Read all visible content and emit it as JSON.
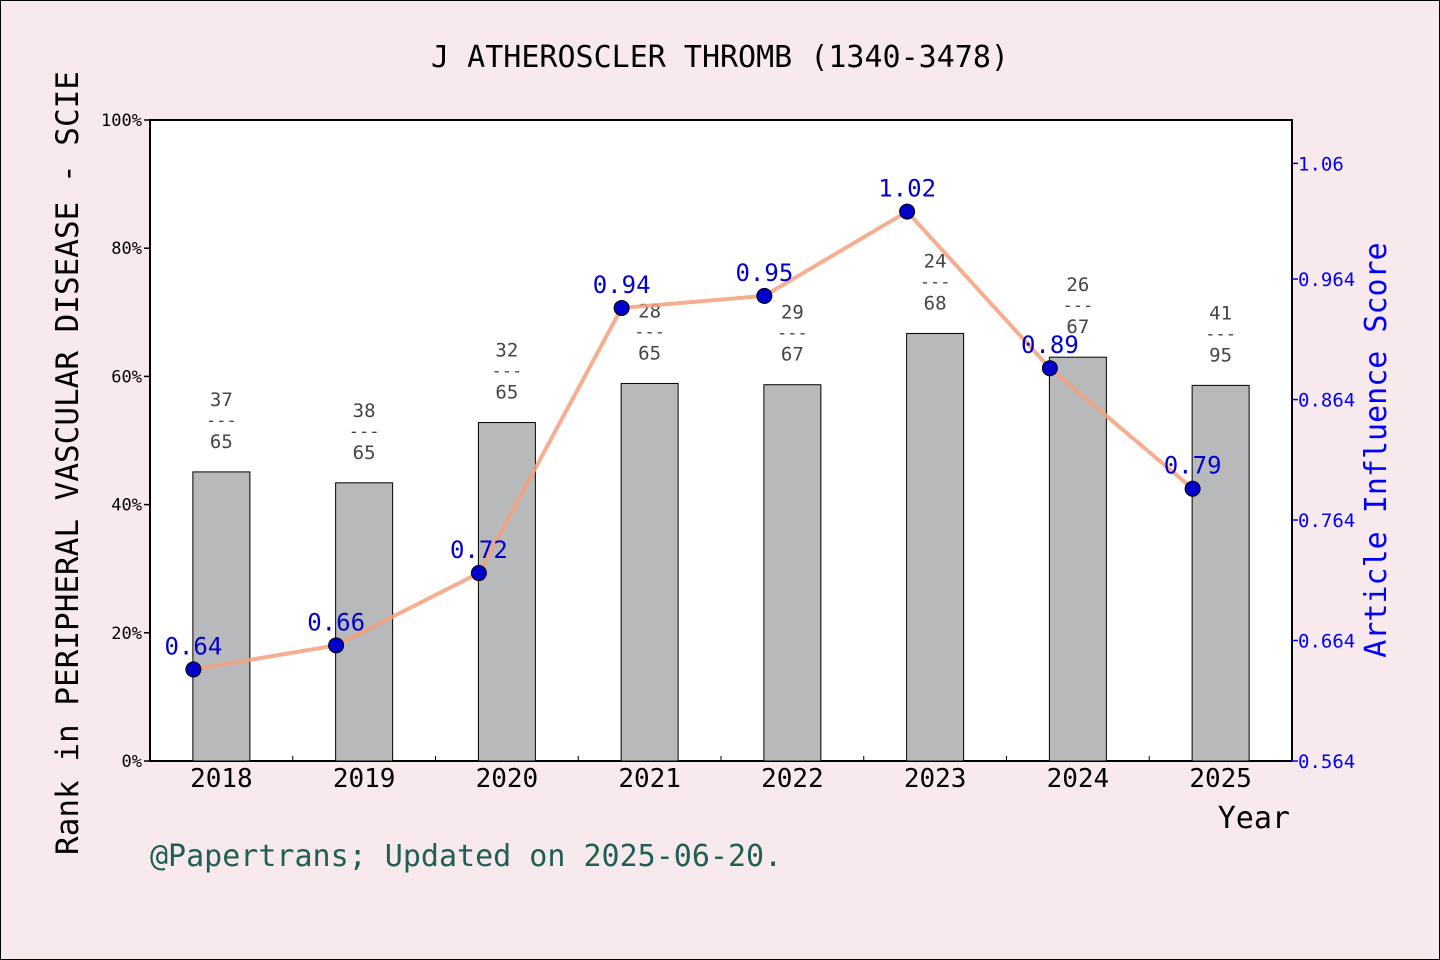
{
  "chart_data": {
    "type": "bar+line",
    "title": "J ATHEROSCLER THROMB (1340-3478)",
    "xlabel": "Year",
    "ylabel_left": "Rank in PERIPHERAL VASCULAR DISEASE - SCIE",
    "ylabel_right": "Article Influence Score",
    "categories": [
      "2018",
      "2019",
      "2020",
      "2021",
      "2022",
      "2023",
      "2024",
      "2025"
    ],
    "left_axis": {
      "ylim": [
        0,
        100
      ],
      "ticks": [
        0,
        20,
        40,
        60,
        80,
        100
      ],
      "tick_labels": [
        "0%",
        "20%",
        "40%",
        "60%",
        "80%",
        "100%"
      ]
    },
    "right_axis": {
      "ylim": [
        0.564,
        1.096
      ],
      "ticks": [
        0.564,
        0.664,
        0.764,
        0.864,
        0.964,
        1.06
      ],
      "tick_labels": [
        "0.564",
        "0.664",
        "0.764",
        "0.864",
        "0.964",
        "1.06"
      ]
    },
    "bars": {
      "values": [
        45.1,
        43.4,
        52.8,
        58.9,
        58.7,
        66.7,
        63.0,
        58.6
      ],
      "rank": [
        "37",
        "38",
        "32",
        "28",
        "29",
        "24",
        "26",
        "41"
      ],
      "total": [
        "65",
        "65",
        "65",
        "65",
        "67",
        "68",
        "67",
        "95"
      ],
      "separator": "---",
      "color": "#b8b9bb"
    },
    "line": {
      "values": [
        0.64,
        0.66,
        0.72,
        0.94,
        0.95,
        1.02,
        0.89,
        0.79
      ],
      "labels": [
        "0.64",
        "0.66",
        "0.72",
        "0.94",
        "0.95",
        "1.02",
        "0.89",
        "0.79"
      ],
      "line_color": "#f4a07e",
      "marker_color": "#0000cc"
    },
    "grid": false
  },
  "footer": {
    "credit": "@Papertrans; Updated on 2025-06-20."
  },
  "colors": {
    "background": "#f7e9ec",
    "plot_background": "#ffffff",
    "right_axis": "#0000ff",
    "credit": "#1f5f55"
  }
}
